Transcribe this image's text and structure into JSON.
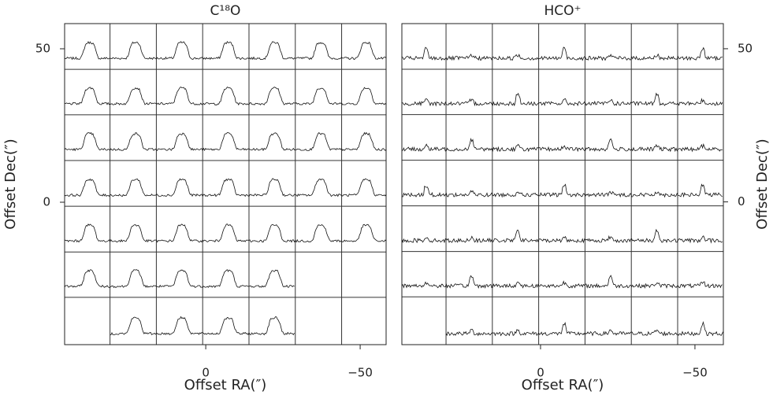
{
  "chart_data": [
    {
      "type": "spectra",
      "title": "C¹⁸O",
      "xlabel": "Offset RA(″)",
      "ylabel": "Offset Dec(″)",
      "xlim": [
        45.7,
        -58.4
      ],
      "ylim": [
        -46.4,
        58.2
      ],
      "xticks": [
        0,
        {
          "value": -50,
          "label": "−50"
        }
      ],
      "yticks": [
        0,
        50
      ],
      "xgrid": [
        31,
        16,
        1,
        -14,
        -29,
        -44
      ],
      "ygrid": [
        43.3,
        28.5,
        13.6,
        -1.3,
        -16.2,
        -31
      ],
      "yaxis": "left"
    },
    {
      "type": "spectra",
      "title": "HCO⁺",
      "xlabel": "Offset RA(″)",
      "ylabel": "Offset Dec(″)",
      "xlim": [
        44.9,
        -59.2
      ],
      "ylim": [
        -46.6,
        58.2
      ],
      "xticks": [
        0,
        {
          "value": -50,
          "label": "−50"
        }
      ],
      "yticks": [
        0,
        50
      ],
      "xgrid": [
        30.6,
        15.6,
        0.6,
        -14.4,
        -29.4,
        -44.4
      ],
      "ygrid": [
        43.3,
        28.5,
        13.6,
        -1.3,
        -16.2,
        -31
      ],
      "yaxis": "right"
    }
  ]
}
